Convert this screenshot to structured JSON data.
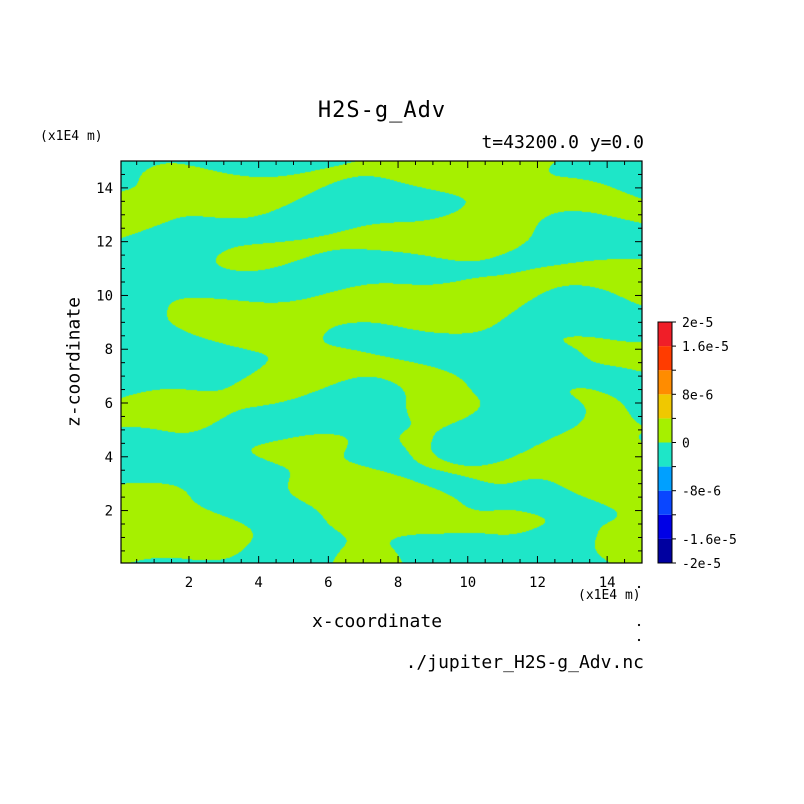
{
  "chart_data": {
    "type": "heatmap",
    "title": "H2S-g_Adv",
    "subtitle": "t=43200.0 y=0.0",
    "xlabel": "x-coordinate",
    "ylabel": "z-coordinate",
    "x_unit": "(x1E4 m)",
    "y_unit": "(x1E4 m)",
    "xlim": [
      0.05,
      15.0
    ],
    "ylim": [
      0.05,
      15.0
    ],
    "x_ticks": [
      2,
      4,
      6,
      8,
      10,
      12,
      14
    ],
    "y_ticks": [
      2,
      4,
      6,
      8,
      10,
      12,
      14
    ],
    "field_values_shown": [
      "0",
      "-8e-6"
    ],
    "field_colors": {
      "0": "#a6f000",
      "-8e-6": "#1ee6c8"
    },
    "colorbar": {
      "levels": [
        -2e-05,
        -1.6e-05,
        -1.2e-05,
        -8e-06,
        -4e-06,
        0,
        4e-06,
        8e-06,
        1.2e-05,
        1.6e-05,
        2e-05
      ],
      "colors": [
        "#0000a0",
        "#0000e6",
        "#0a46ff",
        "#00a0ff",
        "#1ee6c8",
        "#a6f000",
        "#f0c800",
        "#ff8c00",
        "#ff3c00",
        "#f01e28"
      ],
      "labels": [
        {
          "value": 2e-05,
          "text": "2e-5"
        },
        {
          "value": 1.6e-05,
          "text": "1.6e-5"
        },
        {
          "value": 8e-06,
          "text": "8e-6"
        },
        {
          "value": 0,
          "text": "0"
        },
        {
          "value": -8e-06,
          "text": "-8e-6"
        },
        {
          "value": -1.6e-05,
          "text": "-1.6e-5"
        },
        {
          "value": -2e-05,
          "text": "-2e-5"
        }
      ]
    },
    "source_file": "./jupiter_H2S-g_Adv.nc"
  }
}
